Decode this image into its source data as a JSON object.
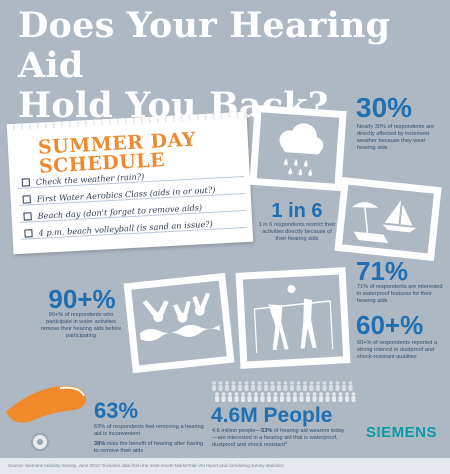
{
  "title_line1": "Does Your Hearing Aid",
  "title_line2": "Hold You Back?",
  "schedule": {
    "title_line1": "SUMMER DAY",
    "title_line2": "SCHEDULE",
    "items": [
      "Check the weather (rain?)",
      "First Water Aerobics Class (aids in or out?)",
      "Beach day (don't forget to remove aids)",
      "4 p.m. beach volleyball (is sand an issue?)"
    ]
  },
  "stat_30": {
    "big": "30%",
    "text": "Nearly 30% of respondents are directly affected by inclement weather because they wear hearing aids"
  },
  "stat_1in6": {
    "big": "1 in 6",
    "text": "1 in 6 respondents restrict their activities directly because of their hearing aids"
  },
  "stat_71": {
    "big": "71%",
    "text": "71% of respondents are interested in waterproof features for their hearing aids"
  },
  "stat_90": {
    "big": "90+%",
    "text": "90+% of respondents who participate in water activities remove their hearing aids before participating"
  },
  "stat_60": {
    "big": "60+%",
    "text": "60+% of respondents reported a strong interest in dustproof and shock-resistant qualities"
  },
  "stat_63": {
    "big": "63%",
    "text1": "63% of respondents feel removing a hearing aid is inconvenient",
    "text2_strong": "38%",
    "text2": " miss the benefit of hearing after having to remove their aids"
  },
  "stat_46m": {
    "big": "4.6M People",
    "text_a": "4.6 million people—",
    "text_strong": "53%",
    "text_b": " of hearing aid wearers today—are interested in a hearing aid that is waterproof, dustproof and shock resistant*"
  },
  "brand": "SIEMENS",
  "footer": "Source: Siemens Industry Survey, June 2013     *Includes data from the most recent MarkeTrak VIII report and correlating survey statistics",
  "colors": {
    "background": "#aeb8c3",
    "accent_blue": "#1f6fb2",
    "schedule_orange": "#ee8a2d",
    "brand_teal": "#0b9aa5"
  },
  "icons": [
    "cloud-rain-icon",
    "beach-sailboat-icon",
    "swimmers-icon",
    "volleyball-net-icon",
    "hearing-aid-icon",
    "crowd-icon"
  ]
}
